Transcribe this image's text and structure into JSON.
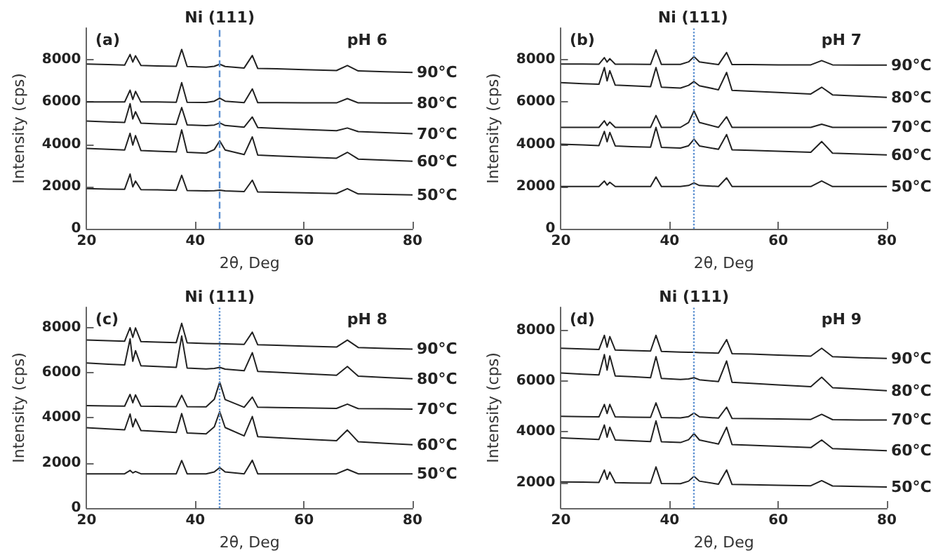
{
  "chart_data": [
    {
      "type": "line",
      "xlabel": "2θ, Deg",
      "ylabel": "Intensity (cps)",
      "annotations": [
        "(a)",
        "pH 6"
      ],
      "marker": "none",
      "xlim": [
        20,
        80
      ],
      "xticks": [
        20,
        40,
        60,
        80
      ],
      "ylim": [
        0,
        9500
      ],
      "yticks": [
        0,
        2000,
        4000,
        6000,
        8000
      ],
      "x": [
        20,
        24,
        27,
        28,
        28.5,
        29,
        30,
        33,
        36.5,
        37.5,
        38.5,
        42,
        43.5,
        44.5,
        45.5,
        49,
        50.5,
        51.5,
        55,
        60,
        66,
        68,
        70,
        75,
        80
      ],
      "ref_lines": [
        {
          "axis": "x",
          "value": 44.5,
          "label": "Ni (111)",
          "color": "#5b8fd0",
          "line_style": "dashed"
        }
      ],
      "series": [
        {
          "name": "90°C",
          "color": "#222222",
          "values": [
            7800,
            7770,
            7750,
            8250,
            7890,
            8190,
            7730,
            7710,
            7690,
            8490,
            7680,
            7650,
            7690,
            7790,
            7680,
            7610,
            8200,
            7590,
            7570,
            7530,
            7490,
            7730,
            7470,
            7430,
            7400
          ]
        },
        {
          "name": "80°C",
          "color": "#222222",
          "values": [
            6000,
            6000,
            6000,
            6560,
            6120,
            6500,
            6000,
            6000,
            5990,
            6920,
            5990,
            5980,
            6040,
            6180,
            6040,
            5970,
            6620,
            5970,
            5970,
            5960,
            5960,
            6160,
            5960,
            5950,
            5950
          ]
        },
        {
          "name": "70°C",
          "color": "#222222",
          "values": [
            5100,
            5060,
            5030,
            5920,
            5200,
            5540,
            5000,
            4970,
            4940,
            5740,
            4920,
            4880,
            4910,
            5010,
            4890,
            4810,
            5290,
            4790,
            4750,
            4700,
            4640,
            4770,
            4600,
            4550,
            4500
          ]
        },
        {
          "name": "60°C",
          "color": "#222222",
          "values": [
            3800,
            3760,
            3730,
            4520,
            3960,
            4410,
            3700,
            3670,
            3640,
            4680,
            3620,
            3580,
            3750,
            4160,
            3730,
            3510,
            4350,
            3490,
            3450,
            3400,
            3340,
            3620,
            3300,
            3250,
            3200
          ]
        },
        {
          "name": "50°C",
          "color": "#222222",
          "values": [
            1900,
            1880,
            1870,
            2590,
            1980,
            2260,
            1850,
            1840,
            1820,
            2530,
            1810,
            1790,
            1800,
            1830,
            1790,
            1760,
            2300,
            1740,
            1730,
            1700,
            1670,
            1900,
            1650,
            1630,
            1600
          ]
        }
      ]
    },
    {
      "type": "line",
      "xlabel": "2θ, Deg",
      "ylabel": "Intensity (cps)",
      "annotations": [
        "(b)",
        "pH 7"
      ],
      "marker": "none",
      "xlim": [
        20,
        80
      ],
      "xticks": [
        20,
        40,
        60,
        80
      ],
      "ylim": [
        0,
        9500
      ],
      "yticks": [
        0,
        2000,
        4000,
        6000,
        8000
      ],
      "x": [
        20,
        24,
        27,
        28,
        28.5,
        29,
        30,
        33,
        36.5,
        37.5,
        38.5,
        42,
        43.5,
        44.5,
        45.5,
        49,
        50.5,
        51.5,
        55,
        60,
        66,
        68,
        70,
        75,
        80
      ],
      "ref_lines": [
        {
          "axis": "x",
          "value": 44.3,
          "label": "Ni (111)",
          "color": "#5b8fd0",
          "line_style": "dotted"
        }
      ],
      "series": [
        {
          "name": "90°C",
          "color": "#222222",
          "values": [
            7800,
            7800,
            7790,
            8100,
            7890,
            8050,
            7790,
            7790,
            7780,
            8470,
            7780,
            7780,
            7900,
            8150,
            7900,
            7770,
            8340,
            7770,
            7770,
            7760,
            7760,
            7960,
            7760,
            7750,
            7750
          ]
        },
        {
          "name": "80°C",
          "color": "#222222",
          "values": [
            6920,
            6870,
            6840,
            7630,
            7000,
            7480,
            6800,
            6770,
            6730,
            7630,
            6700,
            6660,
            6790,
            6970,
            6770,
            6580,
            7400,
            6550,
            6510,
            6450,
            6380,
            6700,
            6340,
            6280,
            6220
          ]
        },
        {
          "name": "70°C",
          "color": "#222222",
          "values": [
            4800,
            4800,
            4800,
            5110,
            4890,
            5050,
            4800,
            4800,
            4800,
            5360,
            4800,
            4800,
            5030,
            5580,
            5030,
            4800,
            5300,
            4800,
            4800,
            4800,
            4800,
            4950,
            4800,
            4800,
            4800
          ]
        },
        {
          "name": "60°C",
          "color": "#222222",
          "values": [
            4000,
            3970,
            3940,
            4610,
            4120,
            4560,
            3920,
            3890,
            3860,
            4800,
            3850,
            3820,
            3930,
            4240,
            3920,
            3760,
            4460,
            3740,
            3710,
            3670,
            3620,
            4130,
            3580,
            3540,
            3500
          ]
        },
        {
          "name": "50°C",
          "color": "#222222",
          "values": [
            2000,
            2000,
            2000,
            2260,
            2070,
            2200,
            2000,
            2000,
            2000,
            2450,
            2000,
            2000,
            2050,
            2170,
            2050,
            2000,
            2410,
            2000,
            2000,
            2000,
            2000,
            2260,
            2000,
            2000,
            2000
          ]
        }
      ]
    },
    {
      "type": "line",
      "xlabel": "2θ, Deg",
      "ylabel": "Intensity (cps)",
      "annotations": [
        "(c)",
        "pH 8"
      ],
      "marker": "none",
      "xlim": [
        20,
        80
      ],
      "xticks": [
        20,
        40,
        60,
        80
      ],
      "ylim": [
        0,
        8900
      ],
      "yticks": [
        0,
        2000,
        4000,
        6000,
        8000
      ],
      "x": [
        20,
        24,
        27,
        28,
        28.5,
        29,
        30,
        33,
        36.5,
        37.5,
        38.5,
        42,
        43.5,
        44.5,
        45.5,
        49,
        50.5,
        51.5,
        55,
        60,
        66,
        68,
        70,
        75,
        80
      ],
      "ref_lines": [
        {
          "axis": "x",
          "value": 44.5,
          "label": "Ni (111)",
          "color": "#5b8fd0",
          "line_style": "dotted"
        }
      ],
      "series": [
        {
          "name": "90°C",
          "color": "#222222",
          "values": [
            7450,
            7420,
            7400,
            8000,
            7570,
            7990,
            7380,
            7360,
            7340,
            8190,
            7330,
            7300,
            7290,
            7290,
            7280,
            7260,
            7800,
            7240,
            7220,
            7180,
            7140,
            7450,
            7120,
            7080,
            7050
          ]
        },
        {
          "name": "80°C",
          "color": "#222222",
          "values": [
            6430,
            6380,
            6350,
            7500,
            6510,
            6980,
            6310,
            6280,
            6240,
            7630,
            6210,
            6170,
            6190,
            6240,
            6160,
            6090,
            6890,
            6060,
            6020,
            5960,
            5890,
            6280,
            5850,
            5790,
            5730
          ]
        },
        {
          "name": "70°C",
          "color": "#222222",
          "values": [
            4540,
            4530,
            4520,
            5040,
            4670,
            5020,
            4520,
            4510,
            4500,
            5000,
            4500,
            4490,
            4820,
            5590,
            4810,
            4470,
            4920,
            4470,
            4460,
            4440,
            4420,
            4610,
            4410,
            4400,
            4390
          ]
        },
        {
          "name": "60°C",
          "color": "#222222",
          "values": [
            3560,
            3510,
            3470,
            4170,
            3600,
            3950,
            3440,
            3400,
            3350,
            4190,
            3330,
            3290,
            3600,
            4280,
            3570,
            3200,
            4060,
            3170,
            3120,
            3060,
            2990,
            3460,
            2940,
            2870,
            2810
          ]
        },
        {
          "name": "50°C",
          "color": "#222222",
          "values": [
            1520,
            1520,
            1520,
            1670,
            1560,
            1620,
            1520,
            1520,
            1520,
            2110,
            1520,
            1520,
            1600,
            1800,
            1600,
            1520,
            2120,
            1520,
            1520,
            1520,
            1520,
            1720,
            1520,
            1520,
            1520
          ]
        }
      ]
    },
    {
      "type": "line",
      "xlabel": "2θ, Deg",
      "ylabel": "Intensity (cps)",
      "annotations": [
        "(d)",
        "pH 9"
      ],
      "marker": "none",
      "xlim": [
        20,
        80
      ],
      "xticks": [
        20,
        40,
        60,
        80
      ],
      "ylim": [
        1000,
        8900
      ],
      "yticks": [
        2000,
        4000,
        6000,
        8000
      ],
      "x": [
        20,
        24,
        27,
        28,
        28.5,
        29,
        30,
        33,
        36.5,
        37.5,
        38.5,
        42,
        43.5,
        44.5,
        45.5,
        49,
        50.5,
        51.5,
        55,
        60,
        66,
        68,
        70,
        75,
        80
      ],
      "ref_lines": [
        {
          "axis": "x",
          "value": 44.5,
          "label": "Ni (111)",
          "color": "#5b8fd0",
          "line_style": "dotted"
        }
      ],
      "series": [
        {
          "name": "90°C",
          "color": "#222222",
          "values": [
            7290,
            7260,
            7240,
            7800,
            7330,
            7750,
            7220,
            7200,
            7180,
            7800,
            7170,
            7140,
            7130,
            7130,
            7120,
            7100,
            7630,
            7080,
            7060,
            7020,
            6980,
            7290,
            6960,
            6920,
            6890
          ]
        },
        {
          "name": "80°C",
          "color": "#222222",
          "values": [
            6320,
            6270,
            6240,
            7040,
            6430,
            6990,
            6200,
            6170,
            6130,
            6960,
            6100,
            6060,
            6080,
            6130,
            6050,
            5980,
            6790,
            5950,
            5910,
            5850,
            5780,
            6150,
            5740,
            5680,
            5620
          ]
        },
        {
          "name": "70°C",
          "color": "#222222",
          "values": [
            4610,
            4600,
            4590,
            5080,
            4720,
            5080,
            4590,
            4580,
            4570,
            5140,
            4560,
            4550,
            4600,
            4740,
            4590,
            4540,
            4970,
            4530,
            4520,
            4510,
            4490,
            4690,
            4480,
            4470,
            4470
          ]
        },
        {
          "name": "60°C",
          "color": "#222222",
          "values": [
            3760,
            3730,
            3700,
            4270,
            3790,
            4180,
            3680,
            3650,
            3620,
            4430,
            3610,
            3580,
            3690,
            3930,
            3680,
            3520,
            4180,
            3500,
            3470,
            3430,
            3380,
            3680,
            3340,
            3300,
            3260
          ]
        },
        {
          "name": "50°C",
          "color": "#222222",
          "values": [
            2030,
            2020,
            2010,
            2500,
            2130,
            2420,
            2000,
            1990,
            1980,
            2620,
            1970,
            1960,
            2060,
            2250,
            2060,
            1940,
            2500,
            1930,
            1920,
            1900,
            1880,
            2080,
            1870,
            1850,
            1830
          ]
        }
      ]
    }
  ]
}
